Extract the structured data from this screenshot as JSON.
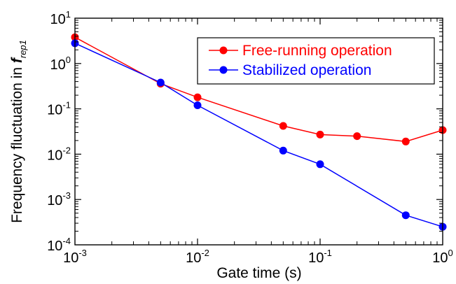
{
  "chart_data": {
    "type": "line",
    "xscale": "log",
    "yscale": "log",
    "xlim": [
      0.001,
      1
    ],
    "ylim": [
      0.0001,
      10
    ],
    "xlabel": "Gate time (s)",
    "ylabel_main": "Frequency fluctuation in ",
    "ylabel_symbol": "f",
    "ylabel_subscript": "rep1",
    "x_ticks": [
      {
        "value": 0.001,
        "base": "10",
        "exp": "-3"
      },
      {
        "value": 0.01,
        "base": "10",
        "exp": "-2"
      },
      {
        "value": 0.1,
        "base": "10",
        "exp": "-1"
      },
      {
        "value": 1,
        "base": "10",
        "exp": "0"
      }
    ],
    "y_ticks": [
      {
        "value": 0.0001,
        "base": "10",
        "exp": "-4"
      },
      {
        "value": 0.001,
        "base": "10",
        "exp": "-3"
      },
      {
        "value": 0.01,
        "base": "10",
        "exp": "-2"
      },
      {
        "value": 0.1,
        "base": "10",
        "exp": "-1"
      },
      {
        "value": 1,
        "base": "10",
        "exp": "0"
      },
      {
        "value": 10,
        "base": "10",
        "exp": "1"
      }
    ],
    "legend_position": "top-right",
    "series": [
      {
        "name": "Free-running operation",
        "color": "#ff0000",
        "points": [
          {
            "x": 0.001,
            "y": 3.8
          },
          {
            "x": 0.005,
            "y": 0.36
          },
          {
            "x": 0.01,
            "y": 0.18
          },
          {
            "x": 0.05,
            "y": 0.042
          },
          {
            "x": 0.1,
            "y": 0.027
          },
          {
            "x": 0.2,
            "y": 0.025
          },
          {
            "x": 0.5,
            "y": 0.019
          },
          {
            "x": 1,
            "y": 0.034
          }
        ]
      },
      {
        "name": "Stabilized operation",
        "color": "#0000ff",
        "points": [
          {
            "x": 0.001,
            "y": 2.8
          },
          {
            "x": 0.005,
            "y": 0.38
          },
          {
            "x": 0.01,
            "y": 0.12
          },
          {
            "x": 0.05,
            "y": 0.012
          },
          {
            "x": 0.1,
            "y": 0.006
          },
          {
            "x": 0.5,
            "y": 0.00045
          },
          {
            "x": 1,
            "y": 0.00025
          }
        ]
      }
    ]
  }
}
